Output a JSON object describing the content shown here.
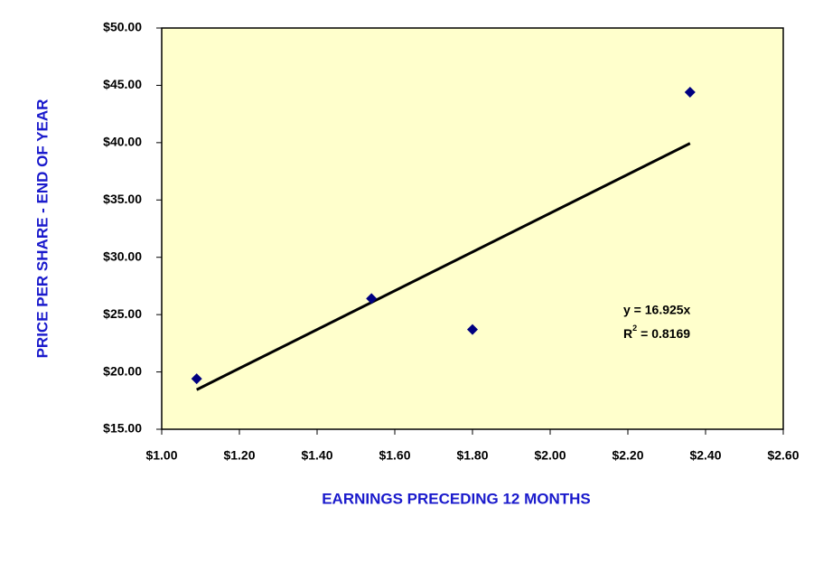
{
  "chart_data": {
    "type": "scatter",
    "x_label": "EARNINGS PRECEDING 12 MONTHS",
    "y_label": "PRICE PER SHARE - END OF YEAR",
    "x": [
      1.09,
      1.54,
      1.8,
      2.36
    ],
    "values": [
      19.4,
      26.4,
      23.7,
      44.4
    ],
    "color": "#000080",
    "trendline": {
      "x": [
        1.09,
        2.36
      ],
      "values": [
        18.45,
        39.94
      ],
      "color": "#000000"
    },
    "annotation": {
      "equation": "y = 16.925x",
      "r2_base": "R",
      "r2_sup": "2",
      "r2_rest": "= 0.8169"
    },
    "xlim": [
      1.0,
      2.6
    ],
    "xticks": [
      {
        "value": 1.0,
        "label": "$1.00"
      },
      {
        "value": 1.2,
        "label": "$1.20"
      },
      {
        "value": 1.4,
        "label": "$1.40"
      },
      {
        "value": 1.6,
        "label": "$1.60"
      },
      {
        "value": 1.8,
        "label": "$1.80"
      },
      {
        "value": 2.0,
        "label": "$2.00"
      },
      {
        "value": 2.2,
        "label": "$2.20"
      },
      {
        "value": 2.4,
        "label": "$2.40"
      },
      {
        "value": 2.6,
        "label": "$2.60"
      }
    ],
    "ylim": [
      15,
      50
    ],
    "yticks": [
      {
        "value": 15,
        "label": "$15.00"
      },
      {
        "value": 20,
        "label": "$20.00"
      },
      {
        "value": 25,
        "label": "$25.00"
      },
      {
        "value": 30,
        "label": "$30.00"
      },
      {
        "value": 35,
        "label": "$35.00"
      },
      {
        "value": 40,
        "label": "$40.00"
      },
      {
        "value": 45,
        "label": "$45.00"
      },
      {
        "value": 50,
        "label": "$50.00"
      }
    ],
    "plot_background": "#ffffcc"
  }
}
